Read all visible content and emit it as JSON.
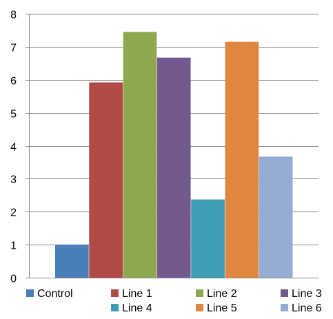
{
  "chart_data": {
    "type": "bar",
    "categories": [
      "Control",
      "Line 1",
      "Line 2",
      "Line 3",
      "Line 4",
      "Line 5",
      "Line 6"
    ],
    "values": [
      1.0,
      5.92,
      7.45,
      6.67,
      2.37,
      7.15,
      3.67
    ],
    "colors": [
      "#4a7ebb",
      "#b14a47",
      "#8ea84f",
      "#735a8e",
      "#3e9db2",
      "#df8640",
      "#94abd3"
    ],
    "title": "",
    "xlabel": "",
    "ylabel": "",
    "ylim": [
      0,
      8
    ],
    "yticks": [
      0,
      1,
      2,
      3,
      4,
      5,
      6,
      7,
      8
    ],
    "grid": true,
    "legend": {
      "placement": "bottom",
      "entries": [
        "Control",
        "Line 1",
        "Line 2",
        "Line 3",
        "Line 4",
        "Line 5",
        "Line 6"
      ]
    }
  }
}
